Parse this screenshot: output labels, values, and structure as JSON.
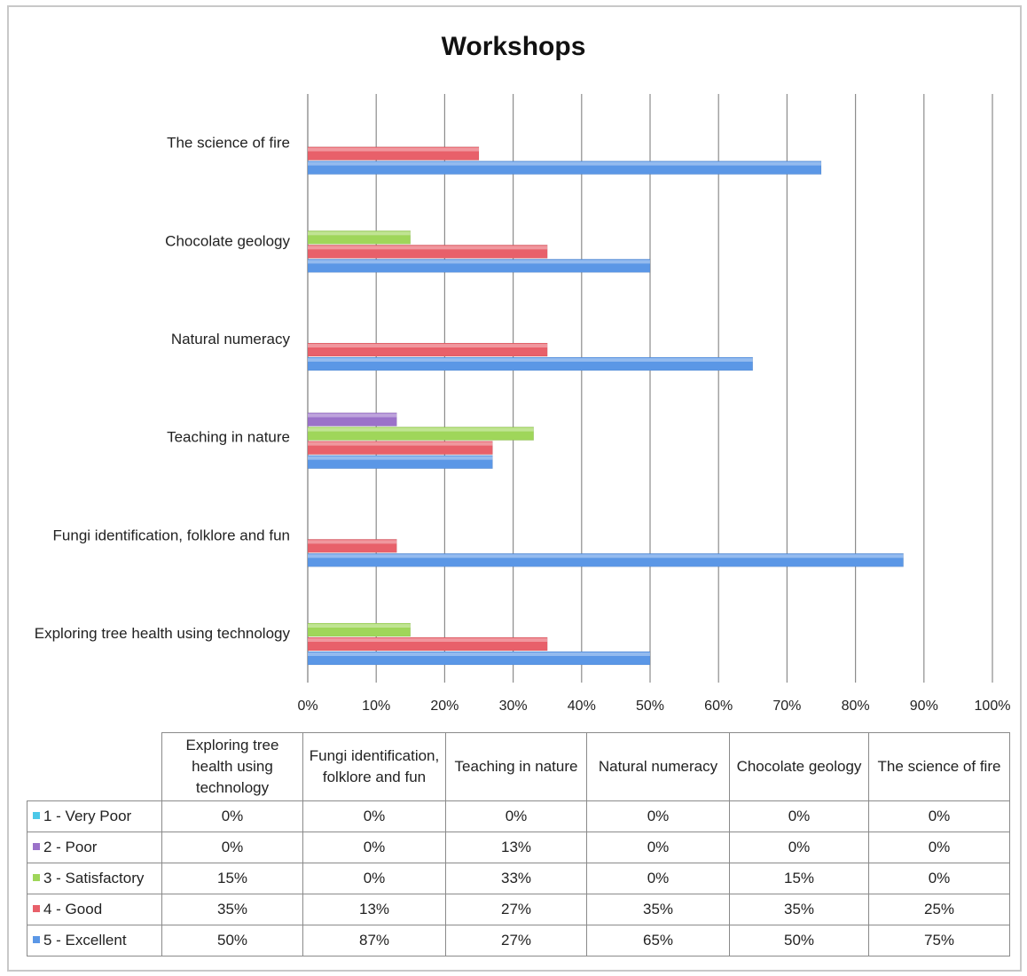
{
  "chart_data": {
    "type": "bar",
    "orientation": "horizontal",
    "title": "Workshops",
    "categories": [
      "Exploring tree health using technology",
      "Fungi identification, folklore and fun",
      "Teaching in nature",
      "Natural numeracy",
      "Chocolate geology",
      "The science of fire"
    ],
    "series": [
      {
        "name": "1 - Very Poor",
        "color": "#4bc8e8",
        "values": [
          0,
          0,
          0,
          0,
          0,
          0
        ]
      },
      {
        "name": "2 - Poor",
        "color": "#9b72c9",
        "values": [
          0,
          0,
          13,
          0,
          0,
          0
        ]
      },
      {
        "name": "3 - Satisfactory",
        "color": "#9fd65a",
        "values": [
          15,
          0,
          33,
          0,
          15,
          0
        ]
      },
      {
        "name": "4 - Good",
        "color": "#e8606a",
        "values": [
          35,
          13,
          27,
          35,
          35,
          25
        ]
      },
      {
        "name": "5 - Excellent",
        "color": "#5b97e6",
        "values": [
          50,
          87,
          27,
          65,
          50,
          75
        ]
      }
    ],
    "xlim": [
      0,
      100
    ],
    "x_ticks": [
      "0%",
      "10%",
      "20%",
      "30%",
      "40%",
      "50%",
      "60%",
      "70%",
      "80%",
      "90%",
      "100%"
    ],
    "grid": true,
    "legend": "data-table-below"
  },
  "table": {
    "headers": [
      "Exploring tree health using technology",
      "Fungi identification, folklore and fun",
      "Teaching in nature",
      "Natural numeracy",
      "Chocolate geology",
      "The science of fire"
    ],
    "rows": [
      {
        "label": "1 - Very Poor",
        "cells": [
          "0%",
          "0%",
          "0%",
          "0%",
          "0%",
          "0%"
        ]
      },
      {
        "label": "2 - Poor",
        "cells": [
          "0%",
          "0%",
          "13%",
          "0%",
          "0%",
          "0%"
        ]
      },
      {
        "label": "3 - Satisfactory",
        "cells": [
          "15%",
          "0%",
          "33%",
          "0%",
          "15%",
          "0%"
        ]
      },
      {
        "label": "4 - Good",
        "cells": [
          "35%",
          "13%",
          "27%",
          "35%",
          "35%",
          "25%"
        ]
      },
      {
        "label": "5 - Excellent",
        "cells": [
          "50%",
          "87%",
          "27%",
          "65%",
          "50%",
          "75%"
        ]
      }
    ]
  }
}
